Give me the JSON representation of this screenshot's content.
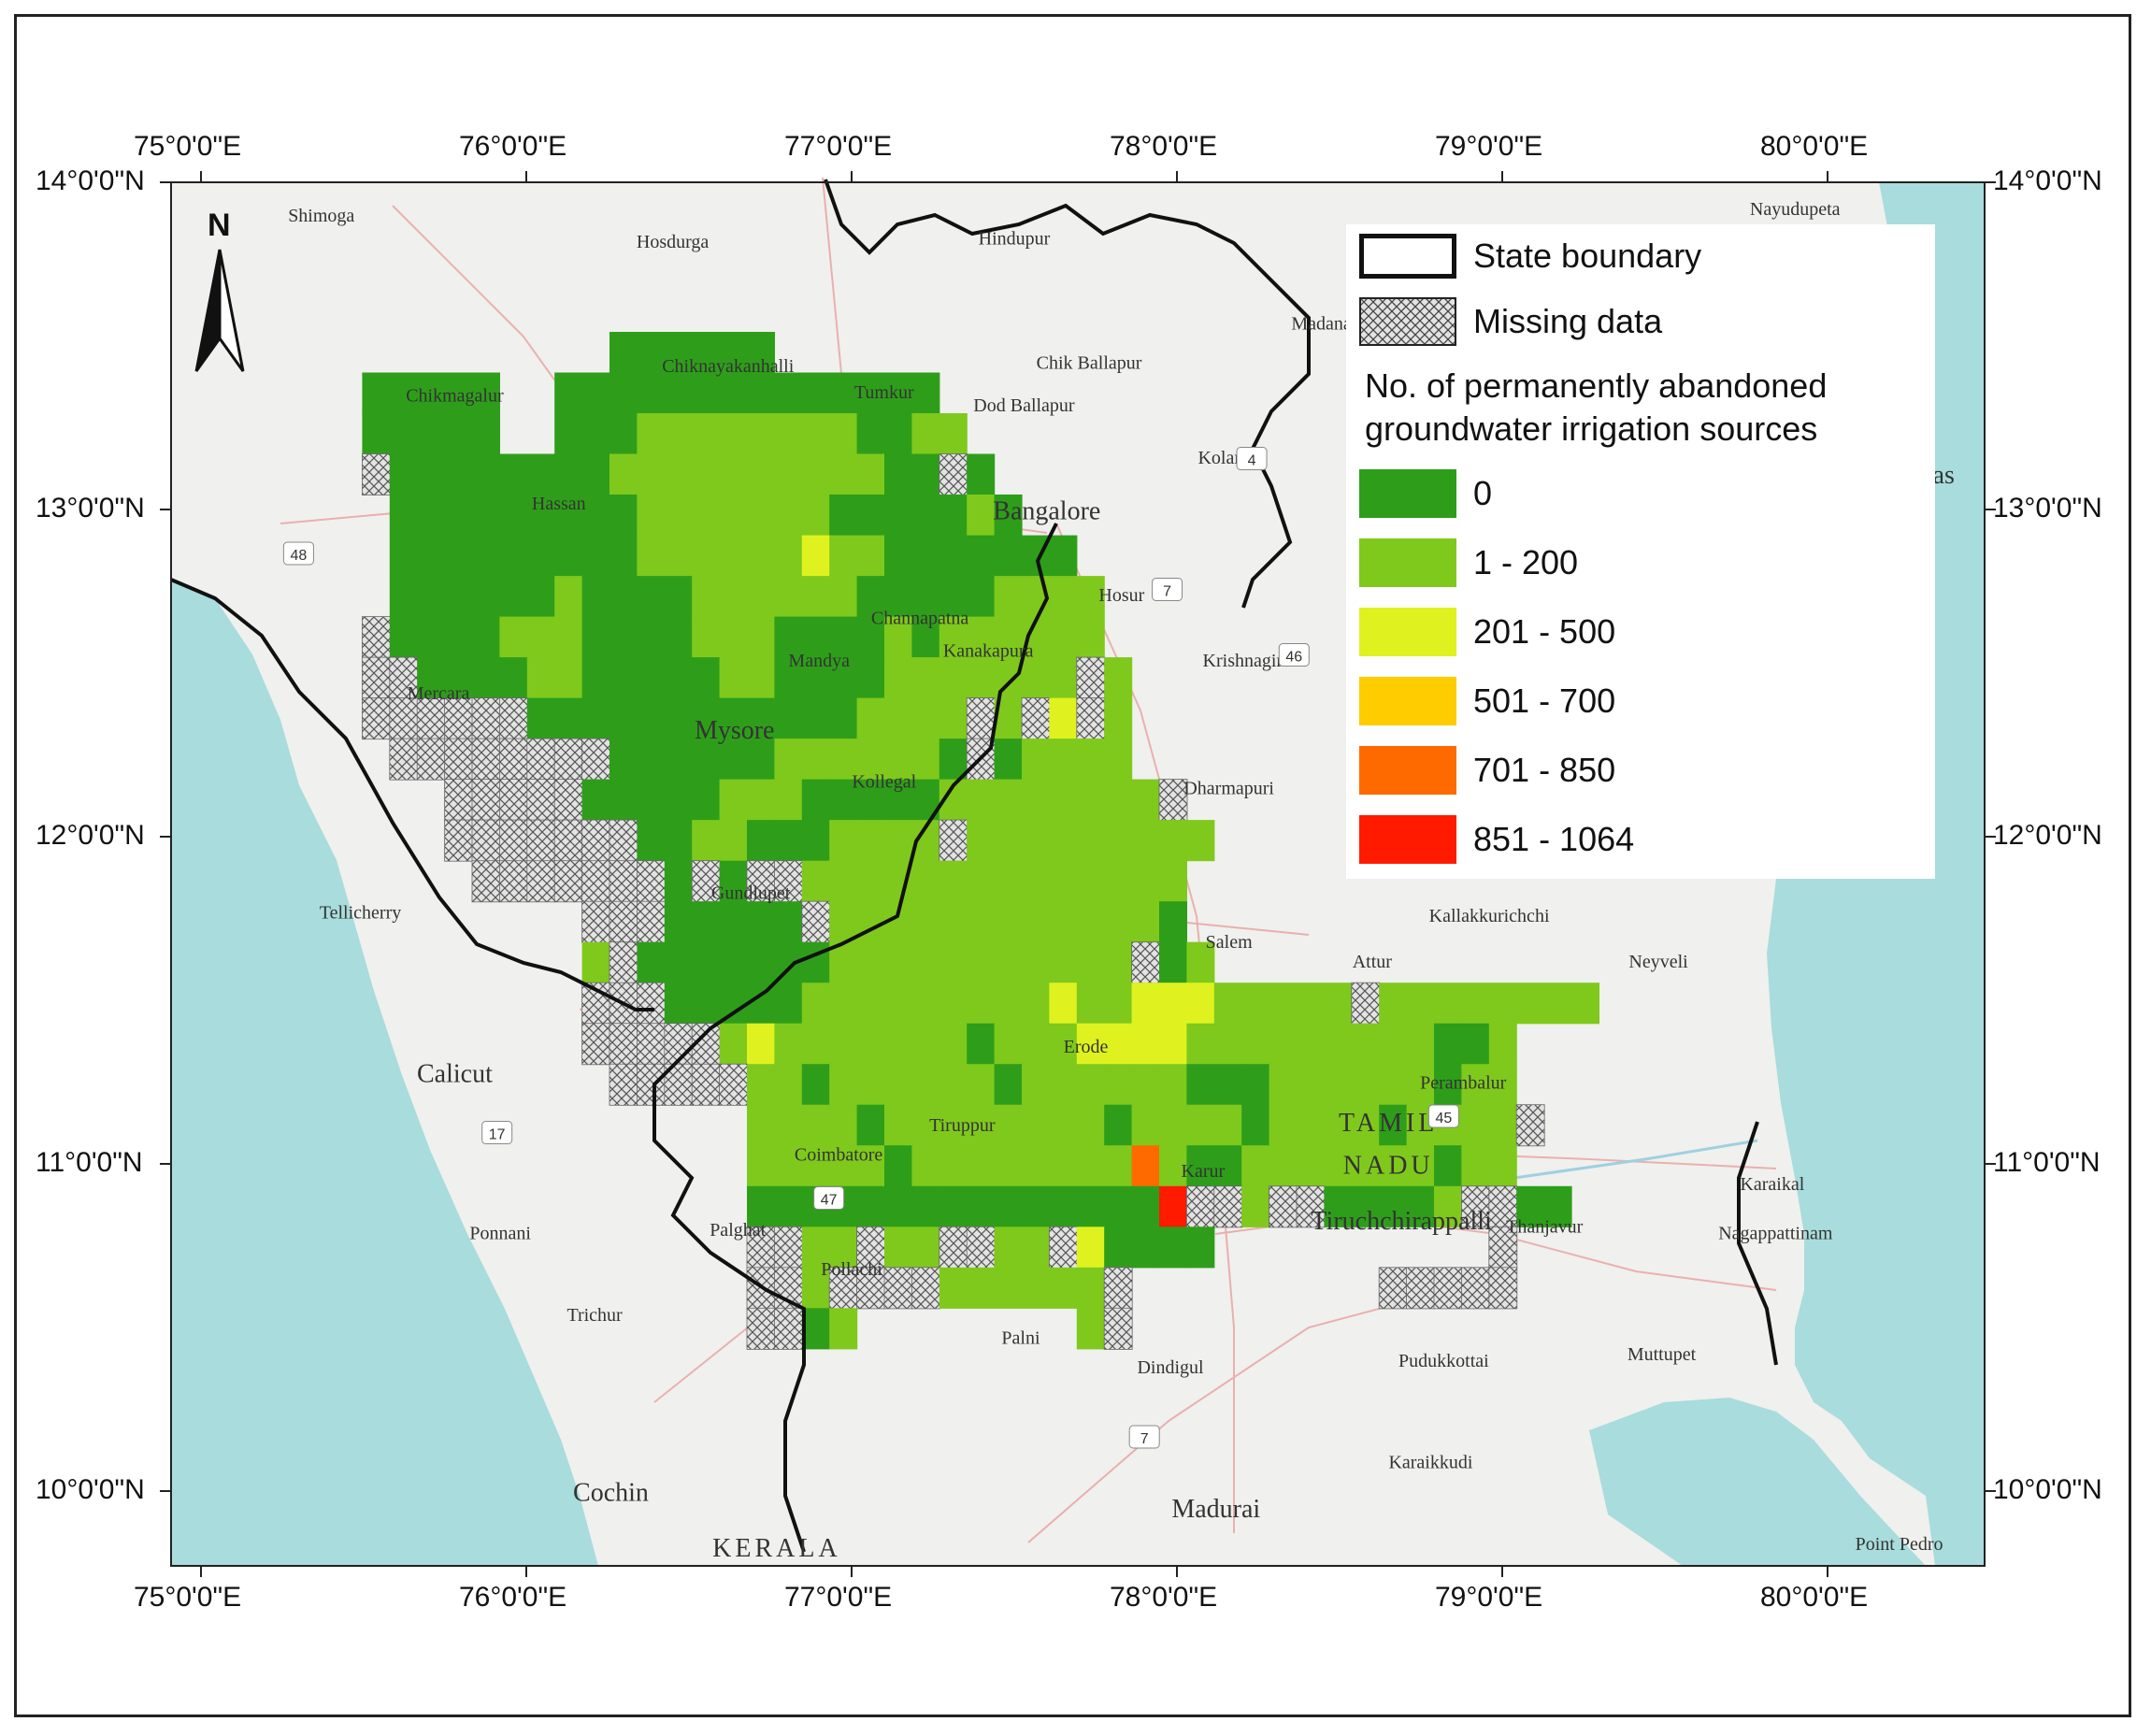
{
  "map": {
    "title": "",
    "colors": {
      "sea": "#a9dcdc",
      "land": "#f0f0ee",
      "class_0": "#2e9e1a",
      "class_1": "#7fc91c",
      "class_2": "#dff21f",
      "class_3": "#ffcc00",
      "class_4": "#ff6a00",
      "class_5": "#ff1a00",
      "missing": "#e3e3e3",
      "roads": "#e8a0a0",
      "rivers": "#9fd0e0"
    },
    "longitude_labels": [
      "75°0'0\"E",
      "76°0'0\"E",
      "77°0'0\"E",
      "78°0'0\"E",
      "79°0'0\"E",
      "80°0'0\"E"
    ],
    "latitude_labels": [
      "14°0'0\"N",
      "13°0'0\"N",
      "12°0'0\"N",
      "11°0'0\"N",
      "10°0'0\"N"
    ],
    "north_arrow": "N",
    "legend": {
      "state_boundary": "State boundary",
      "missing_data": "Missing data",
      "title": "No. of permanently abandoned groundwater irrigation sources",
      "classes": [
        {
          "label": "0",
          "color": "#2e9e1a"
        },
        {
          "label": "1 - 200",
          "color": "#7fc91c"
        },
        {
          "label": "201 - 500",
          "color": "#dff21f"
        },
        {
          "label": "501 - 700",
          "color": "#ffcc00"
        },
        {
          "label": "701 - 850",
          "color": "#ff6a00"
        },
        {
          "label": "851 - 1064",
          "color": "#ff1a00"
        }
      ]
    },
    "places": [
      {
        "name": "Shimoga",
        "lon": 75.37,
        "lat": 13.88
      },
      {
        "name": "Hosdurga",
        "lon": 76.45,
        "lat": 13.8
      },
      {
        "name": "Chiknayakanhalli",
        "lon": 76.62,
        "lat": 13.42
      },
      {
        "name": "Chikmagalur",
        "lon": 75.78,
        "lat": 13.33
      },
      {
        "name": "Tumkur",
        "lon": 77.1,
        "lat": 13.34
      },
      {
        "name": "Dod Ballapur",
        "lon": 77.53,
        "lat": 13.3
      },
      {
        "name": "Chik Ballapur",
        "lon": 77.73,
        "lat": 13.43
      },
      {
        "name": "Hindupur",
        "lon": 77.5,
        "lat": 13.81
      },
      {
        "name": "Madanapalle",
        "lon": 78.5,
        "lat": 13.55
      },
      {
        "name": "Nayudupeta",
        "lon": 79.9,
        "lat": 13.9
      },
      {
        "name": "Kolar",
        "lon": 78.13,
        "lat": 13.14
      },
      {
        "name": "Bangalore",
        "lon": 77.6,
        "lat": 12.97
      },
      {
        "name": "Hassan",
        "lon": 76.1,
        "lat": 13.0
      },
      {
        "name": "Hosur",
        "lon": 77.83,
        "lat": 12.72
      },
      {
        "name": "Krishnagiri",
        "lon": 78.21,
        "lat": 12.52
      },
      {
        "name": "Channapatna",
        "lon": 77.21,
        "lat": 12.65
      },
      {
        "name": "Kanakapura",
        "lon": 77.42,
        "lat": 12.55
      },
      {
        "name": "Mandya",
        "lon": 76.9,
        "lat": 12.52
      },
      {
        "name": "Mercara",
        "lon": 75.73,
        "lat": 12.42
      },
      {
        "name": "Mysore",
        "lon": 76.64,
        "lat": 12.3
      },
      {
        "name": "Dharmapuri",
        "lon": 78.16,
        "lat": 12.13
      },
      {
        "name": "Kollegal",
        "lon": 77.1,
        "lat": 12.15
      },
      {
        "name": "Gundlupet",
        "lon": 76.69,
        "lat": 11.81
      },
      {
        "name": "Tellicherry",
        "lon": 75.49,
        "lat": 11.75
      },
      {
        "name": "Kallakkurichchi",
        "lon": 78.96,
        "lat": 11.74
      },
      {
        "name": "Salem",
        "lon": 78.16,
        "lat": 11.66
      },
      {
        "name": "Attur",
        "lon": 78.6,
        "lat": 11.6
      },
      {
        "name": "Neyveli",
        "lon": 79.48,
        "lat": 11.6
      },
      {
        "name": "Erode",
        "lon": 77.72,
        "lat": 11.34
      },
      {
        "name": "Perambalur",
        "lon": 78.88,
        "lat": 11.23
      },
      {
        "name": "Calicut",
        "lon": 75.78,
        "lat": 11.25
      },
      {
        "name": "Tiruppur",
        "lon": 77.34,
        "lat": 11.1
      },
      {
        "name": "TAMIL",
        "lon": 78.65,
        "lat": 11.1
      },
      {
        "name": "NADU",
        "lon": 78.65,
        "lat": 10.97
      },
      {
        "name": "Coimbatore",
        "lon": 76.96,
        "lat": 11.01
      },
      {
        "name": "Karaikal",
        "lon": 79.83,
        "lat": 10.92
      },
      {
        "name": "Karur",
        "lon": 78.08,
        "lat": 10.96
      },
      {
        "name": "Palghat",
        "lon": 76.65,
        "lat": 10.78
      },
      {
        "name": "Tiruchchirappalli",
        "lon": 78.69,
        "lat": 10.8
      },
      {
        "name": "Thanjavur",
        "lon": 79.13,
        "lat": 10.79
      },
      {
        "name": "Nagappattinam",
        "lon": 79.84,
        "lat": 10.77
      },
      {
        "name": "Ponnani",
        "lon": 75.92,
        "lat": 10.77
      },
      {
        "name": "Pollachi",
        "lon": 77.0,
        "lat": 10.66
      },
      {
        "name": "Trichur",
        "lon": 76.21,
        "lat": 10.52
      },
      {
        "name": "Palni",
        "lon": 77.52,
        "lat": 10.45
      },
      {
        "name": "Pudukkottai",
        "lon": 78.82,
        "lat": 10.38
      },
      {
        "name": "Muttupet",
        "lon": 79.49,
        "lat": 10.4
      },
      {
        "name": "Dindigul",
        "lon": 77.98,
        "lat": 10.36
      },
      {
        "name": "Karaikkudi",
        "lon": 78.78,
        "lat": 10.07
      },
      {
        "name": "Cochin",
        "lon": 76.26,
        "lat": 9.97
      },
      {
        "name": "KERALA",
        "lon": 76.77,
        "lat": 9.8
      },
      {
        "name": "Madurai",
        "lon": 78.12,
        "lat": 9.92
      },
      {
        "name": "Point Pedro",
        "lon": 80.22,
        "lat": 9.82
      },
      {
        "name": "Madras",
        "lon": 80.27,
        "lat": 13.08
      }
    ],
    "road_labels": [
      {
        "name": "48",
        "lon": 75.3,
        "lat": 12.86
      },
      {
        "name": "4",
        "lon": 78.23,
        "lat": 13.15
      },
      {
        "name": "7",
        "lon": 77.97,
        "lat": 12.75
      },
      {
        "name": "46",
        "lon": 78.36,
        "lat": 12.55
      },
      {
        "name": "17",
        "lon": 75.91,
        "lat": 11.09
      },
      {
        "name": "47",
        "lon": 76.93,
        "lat": 10.89
      },
      {
        "name": "45",
        "lon": 78.82,
        "lat": 11.14
      },
      {
        "name": "7",
        "lon": 77.9,
        "lat": 10.16
      }
    ],
    "grid_rows": [
      {
        "lat": 13.5,
        "cells": "..........................................................................................................................................................................................................."
      },
      {
        "lat": 13.38,
        "cells": "................................................................000000000000000000000000000000000000000000000000000000000000000000000000000000000000000000..........................................."
      }
    ]
  }
}
